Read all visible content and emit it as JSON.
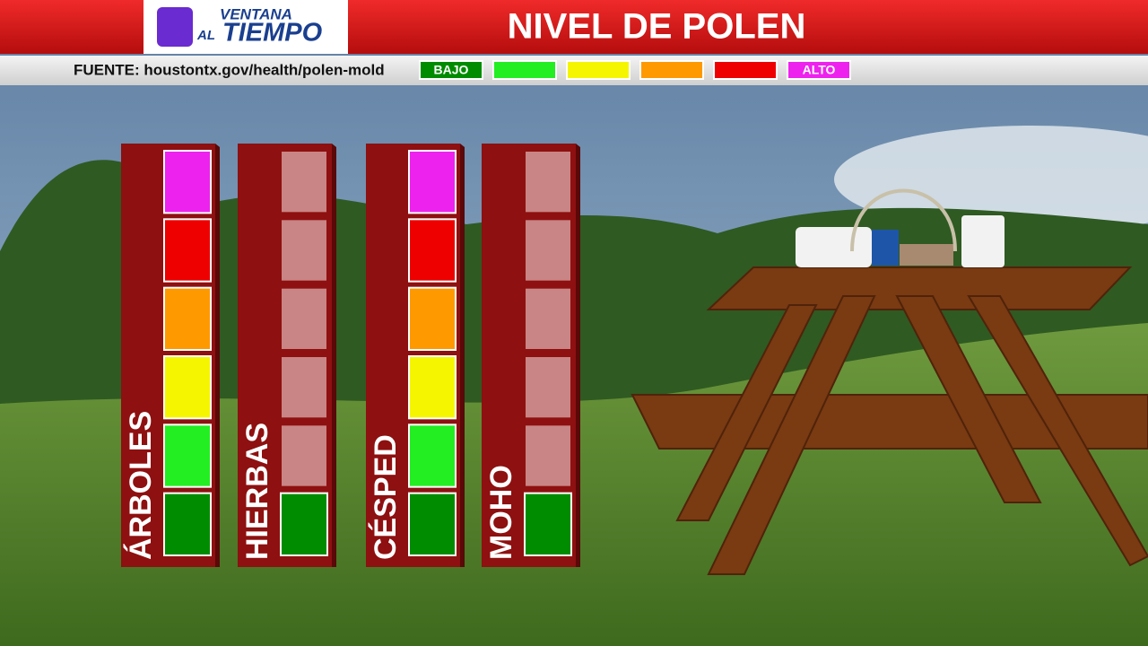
{
  "chart_data": {
    "type": "pollen-columns",
    "brand_top": "VENTANA",
    "brand_left": "AL",
    "brand_main": "TIEMPO",
    "title": "NIVEL DE POLEN",
    "source": "FUENTE: houstontx.gov/health/polen-mold",
    "scale": [
      {
        "color": "#008c00",
        "label": "BAJO"
      },
      {
        "color": "#22ee22"
      },
      {
        "color": "#f5f500"
      },
      {
        "color": "#ff9900"
      },
      {
        "color": "#ee0000"
      },
      {
        "color": "#ee22ee",
        "label": "ALTO"
      }
    ],
    "off_color": "#c98585",
    "categories": [
      "ÁRBOLES",
      "HIERBAS",
      "CÉSPED",
      "MOHO"
    ],
    "values": [
      6,
      1,
      6,
      1
    ]
  }
}
